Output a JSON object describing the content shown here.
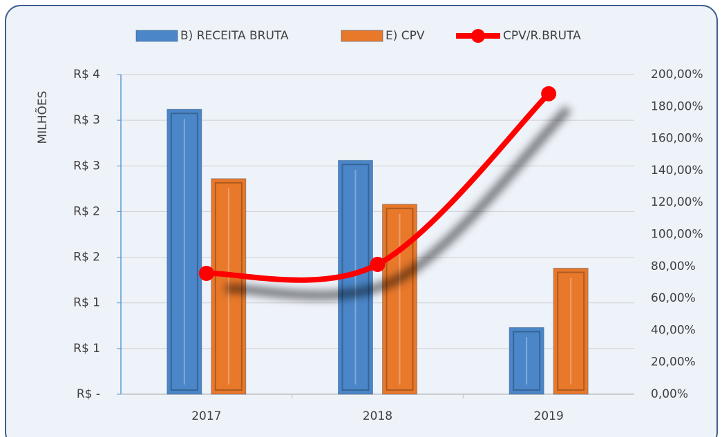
{
  "chart_data": {
    "type": "bar",
    "y_axis_label": "MILHÕES",
    "categories": [
      "2017",
      "2018",
      "2019"
    ],
    "series": [
      {
        "name": "B) RECEITA BRUTA",
        "color": "#4a86c8",
        "values": [
          3.12,
          2.56,
          0.73
        ]
      },
      {
        "name": "E) CPV",
        "color": "#e8782a",
        "values": [
          2.36,
          2.08,
          1.38
        ]
      },
      {
        "name": "CPV/R.BRUTA",
        "color": "#ff0000",
        "type": "line",
        "axis": "y2",
        "values": [
          75.6,
          81.2,
          188
        ]
      }
    ],
    "ylim": [
      0,
      3.5
    ],
    "yticks": [
      {
        "value": 0,
        "label": "R$ -"
      },
      {
        "value": 0.5,
        "label": "R$ 1"
      },
      {
        "value": 1,
        "label": "R$ 1"
      },
      {
        "value": 1.5,
        "label": "R$ 2"
      },
      {
        "value": 2,
        "label": "R$ 2"
      },
      {
        "value": 2.5,
        "label": "R$ 3"
      },
      {
        "value": 3,
        "label": "R$ 3"
      },
      {
        "value": 3.5,
        "label": "R$ 4"
      }
    ],
    "y2lim": [
      0,
      200
    ],
    "y2ticks": [
      {
        "value": 0,
        "label": "0,00%"
      },
      {
        "value": 20,
        "label": "20,00%"
      },
      {
        "value": 40,
        "label": "40,00%"
      },
      {
        "value": 60,
        "label": "60,00%"
      },
      {
        "value": 80,
        "label": "80,00%"
      },
      {
        "value": 100,
        "label": "100,00%"
      },
      {
        "value": 120,
        "label": "120,00%"
      },
      {
        "value": 140,
        "label": "140,00%"
      },
      {
        "value": 160,
        "label": "160,00%"
      },
      {
        "value": 180,
        "label": "180,00%"
      },
      {
        "value": 200,
        "label": "200,00%"
      }
    ],
    "grid": true,
    "legend": "top"
  }
}
